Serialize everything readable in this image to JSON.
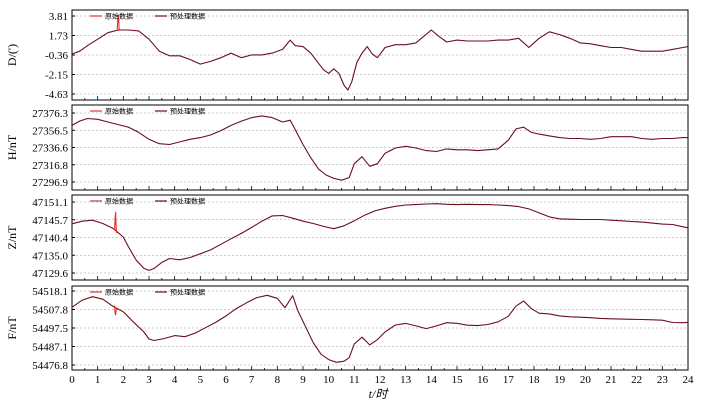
{
  "chart_data": [
    {
      "type": "line",
      "ylabel": "D/(')",
      "yticks": [
        "3.81",
        "1.73",
        "-0.36",
        "-2.15",
        "-4.63"
      ],
      "ylim": [
        -4.63,
        3.81
      ],
      "xlim": [
        0,
        24
      ],
      "grid": "dashed horizontal",
      "legend": "top-left",
      "series": [
        {
          "name": "原始数据",
          "color": "#e8302a",
          "x": [
            1.76,
            1.78,
            1.8,
            1.82,
            1.84
          ],
          "y": [
            2.2,
            3.3,
            3.9,
            3.4,
            2.2
          ]
        },
        {
          "name": "预处理数据",
          "color": "#6a0f1e",
          "x": [
            0,
            0.3,
            0.6,
            1.0,
            1.4,
            1.8,
            2.2,
            2.6,
            3.0,
            3.4,
            3.8,
            4.2,
            4.6,
            5.0,
            5.4,
            5.8,
            6.2,
            6.6,
            7.0,
            7.4,
            7.8,
            8.2,
            8.5,
            8.7,
            9.0,
            9.3,
            9.6,
            9.8,
            10.0,
            10.2,
            10.4,
            10.6,
            10.75,
            10.9,
            11.1,
            11.3,
            11.5,
            11.7,
            11.9,
            12.2,
            12.6,
            13.0,
            13.4,
            13.7,
            14.0,
            14.3,
            14.6,
            15.0,
            15.4,
            15.8,
            16.2,
            16.6,
            17.0,
            17.4,
            17.8,
            18.2,
            18.6,
            19.0,
            19.4,
            19.8,
            20.2,
            20.6,
            21.0,
            21.4,
            21.8,
            22.2,
            22.6,
            23.0,
            23.4,
            23.8,
            24.0
          ],
          "y": [
            -0.3,
            0.0,
            0.6,
            1.3,
            2.0,
            2.3,
            2.3,
            2.2,
            1.3,
            0.0,
            -0.5,
            -0.5,
            -0.9,
            -1.4,
            -1.1,
            -0.7,
            -0.2,
            -0.7,
            -0.4,
            -0.4,
            -0.2,
            0.2,
            1.2,
            0.6,
            0.5,
            -0.2,
            -1.3,
            -2.0,
            -2.4,
            -1.9,
            -2.4,
            -3.7,
            -4.2,
            -3.3,
            -1.2,
            -0.2,
            0.5,
            -0.3,
            -0.7,
            0.4,
            0.7,
            0.7,
            0.9,
            1.6,
            2.3,
            1.6,
            1.0,
            1.2,
            1.1,
            1.1,
            1.1,
            1.2,
            1.2,
            1.4,
            0.4,
            1.4,
            2.1,
            1.8,
            1.4,
            0.9,
            0.8,
            0.6,
            0.4,
            0.4,
            0.2,
            0.0,
            0.0,
            0.0,
            0.2,
            0.4,
            0.5
          ]
        }
      ]
    },
    {
      "type": "line",
      "ylabel": "H/nT",
      "yticks": [
        "27376.3",
        "27356.5",
        "27336.6",
        "27316.8",
        "27296.9"
      ],
      "ylim": [
        27296.9,
        27376.3
      ],
      "xlim": [
        0,
        24
      ],
      "grid": "dashed horizontal",
      "legend": "top-left",
      "series": [
        {
          "name": "原始数据",
          "color": "#e8302a",
          "x": [],
          "y": []
        },
        {
          "name": "预处理数据",
          "color": "#6a0f1e",
          "x": [
            0,
            0.3,
            0.6,
            1.0,
            1.4,
            1.8,
            2.2,
            2.6,
            3.0,
            3.4,
            3.8,
            4.2,
            4.6,
            5.0,
            5.4,
            5.8,
            6.2,
            6.6,
            7.0,
            7.4,
            7.8,
            8.2,
            8.5,
            8.7,
            9.0,
            9.3,
            9.6,
            9.9,
            10.2,
            10.5,
            10.8,
            11.0,
            11.3,
            11.6,
            11.9,
            12.2,
            12.6,
            13.0,
            13.4,
            13.8,
            14.2,
            14.6,
            15.0,
            15.4,
            15.8,
            16.2,
            16.6,
            17.0,
            17.3,
            17.6,
            17.9,
            18.2,
            18.6,
            19.0,
            19.4,
            19.8,
            20.2,
            20.6,
            21.0,
            21.4,
            21.8,
            22.2,
            22.6,
            23.0,
            23.4,
            23.8,
            24.0
          ],
          "y": [
            27362,
            27367,
            27370,
            27369,
            27366,
            27363,
            27360,
            27354,
            27346,
            27341,
            27340,
            27343,
            27346,
            27348,
            27351,
            27356,
            27362,
            27367,
            27371,
            27373,
            27371,
            27366,
            27368,
            27357,
            27340,
            27325,
            27312,
            27305,
            27301,
            27299,
            27302,
            27318,
            27326,
            27315,
            27318,
            27330,
            27336,
            27338,
            27336,
            27333,
            27332,
            27335,
            27334,
            27334,
            27333,
            27334,
            27335,
            27345,
            27358,
            27360,
            27354,
            27352,
            27350,
            27348,
            27347,
            27347,
            27346,
            27347,
            27349,
            27349,
            27349,
            27347,
            27346,
            27347,
            27347,
            27348,
            27348
          ]
        }
      ]
    },
    {
      "type": "line",
      "ylabel": "Z/nT",
      "yticks": [
        "47151.1",
        "47145.7",
        "47140.4",
        "47135.0",
        "47129.6"
      ],
      "ylim": [
        47129.6,
        47151.1
      ],
      "xlim": [
        0,
        24
      ],
      "grid": "dashed horizontal",
      "legend": "top-left",
      "series": [
        {
          "name": "原始数据",
          "color": "#e8302a",
          "x": [
            1.66,
            1.68,
            1.7,
            1.72,
            1.74
          ],
          "y": [
            47142.6,
            47146.5,
            47148.0,
            47143.5,
            47141.7
          ]
        },
        {
          "name": "预处理数据",
          "color": "#6a0f1e",
          "x": [
            0,
            0.4,
            0.8,
            1.2,
            1.6,
            1.8,
            2.0,
            2.2,
            2.5,
            2.8,
            3.0,
            3.2,
            3.5,
            3.8,
            4.2,
            4.6,
            5.0,
            5.4,
            5.8,
            6.2,
            6.6,
            7.0,
            7.4,
            7.8,
            8.2,
            8.6,
            9.0,
            9.4,
            9.8,
            10.2,
            10.6,
            11.0,
            11.4,
            11.8,
            12.2,
            12.6,
            13.0,
            13.4,
            13.8,
            14.2,
            14.6,
            15.0,
            15.4,
            15.8,
            16.2,
            16.6,
            17.0,
            17.4,
            17.8,
            18.2,
            18.6,
            19.0,
            19.4,
            19.8,
            20.2,
            20.6,
            21.0,
            21.4,
            21.8,
            22.2,
            22.6,
            23.0,
            23.4,
            23.8,
            24.0
          ],
          "y": [
            47144.5,
            47145.3,
            47145.6,
            47144.6,
            47143.1,
            47141.8,
            47140.5,
            47137.5,
            47133.5,
            47131.0,
            47130.4,
            47131.0,
            47132.8,
            47134.0,
            47133.6,
            47134.3,
            47135.4,
            47136.6,
            47138.3,
            47140.0,
            47141.6,
            47143.4,
            47145.3,
            47146.9,
            47147.0,
            47146.2,
            47145.3,
            47144.6,
            47143.7,
            47143.0,
            47143.9,
            47145.4,
            47147.1,
            47148.4,
            47149.2,
            47149.8,
            47150.2,
            47150.3,
            47150.5,
            47150.6,
            47150.4,
            47150.3,
            47150.4,
            47150.3,
            47150.3,
            47150.2,
            47150.0,
            47149.7,
            47149.0,
            47147.8,
            47146.6,
            47146.0,
            47145.9,
            47145.8,
            47145.8,
            47145.8,
            47145.6,
            47145.4,
            47145.2,
            47145.0,
            47144.7,
            47144.4,
            47144.3,
            47143.6,
            47143.3
          ]
        }
      ]
    },
    {
      "type": "line",
      "ylabel": "F/nT",
      "yticks": [
        "54518.1",
        "54507.8",
        "54497.5",
        "54487.1",
        "54476.8"
      ],
      "ylim": [
        54476.8,
        54518.1
      ],
      "xlim": [
        0,
        24
      ],
      "xticks": [
        "0",
        "1",
        "2",
        "3",
        "4",
        "5",
        "6",
        "7",
        "8",
        "9",
        "10",
        "11",
        "12",
        "13",
        "14",
        "15",
        "16",
        "17",
        "18",
        "19",
        "20",
        "21",
        "22",
        "23",
        "24"
      ],
      "xlabel": "t/时",
      "grid": "dashed horizontal",
      "legend": "top-left",
      "series": [
        {
          "name": "原始数据",
          "color": "#e8302a",
          "x": [
            1.66,
            1.68,
            1.7,
            1.72,
            1.74
          ],
          "y": [
            54510.0,
            54505.6,
            54504.8,
            54507.4,
            54508.4
          ]
        },
        {
          "name": "预处理数据",
          "color": "#6a0f1e",
          "x": [
            0,
            0.4,
            0.8,
            1.2,
            1.6,
            2.0,
            2.4,
            2.8,
            3.0,
            3.2,
            3.6,
            4.0,
            4.4,
            4.8,
            5.2,
            5.6,
            6.0,
            6.4,
            6.8,
            7.2,
            7.6,
            8.0,
            8.3,
            8.6,
            8.8,
            9.1,
            9.4,
            9.7,
            10.0,
            10.3,
            10.6,
            10.8,
            11.0,
            11.3,
            11.6,
            11.9,
            12.2,
            12.6,
            13.0,
            13.4,
            13.8,
            14.2,
            14.6,
            15.0,
            15.4,
            15.8,
            16.2,
            16.6,
            17.0,
            17.3,
            17.6,
            17.9,
            18.2,
            18.6,
            19.0,
            19.4,
            19.8,
            20.2,
            20.6,
            21.0,
            21.4,
            21.8,
            22.2,
            22.6,
            23.0,
            23.4,
            23.8,
            24.0
          ],
          "y": [
            54509.0,
            54513.0,
            54514.9,
            54513.5,
            54509.5,
            54506.5,
            54500.7,
            54495.2,
            54491.3,
            54490.5,
            54491.6,
            54493.2,
            54492.6,
            54494.6,
            54497.6,
            54500.6,
            54504.2,
            54508.3,
            54511.5,
            54514.4,
            54515.7,
            54514.0,
            54508.8,
            54515.5,
            54507.0,
            54498.2,
            54489.2,
            54482.8,
            54479.8,
            54478.3,
            54478.9,
            54480.9,
            54488.6,
            54492.3,
            54488.0,
            54491.0,
            54495.3,
            54499.1,
            54500.0,
            54498.6,
            54497.1,
            54498.6,
            54500.4,
            54500.1,
            54499.0,
            54498.8,
            54499.4,
            54500.9,
            54504.0,
            54509.7,
            54512.5,
            54508.2,
            54505.7,
            54505.3,
            54504.2,
            54503.7,
            54503.5,
            54503.2,
            54502.8,
            54502.6,
            54502.4,
            54502.3,
            54502.2,
            54502.0,
            54501.8,
            54500.5,
            54500.4,
            54500.6
          ]
        }
      ]
    }
  ]
}
